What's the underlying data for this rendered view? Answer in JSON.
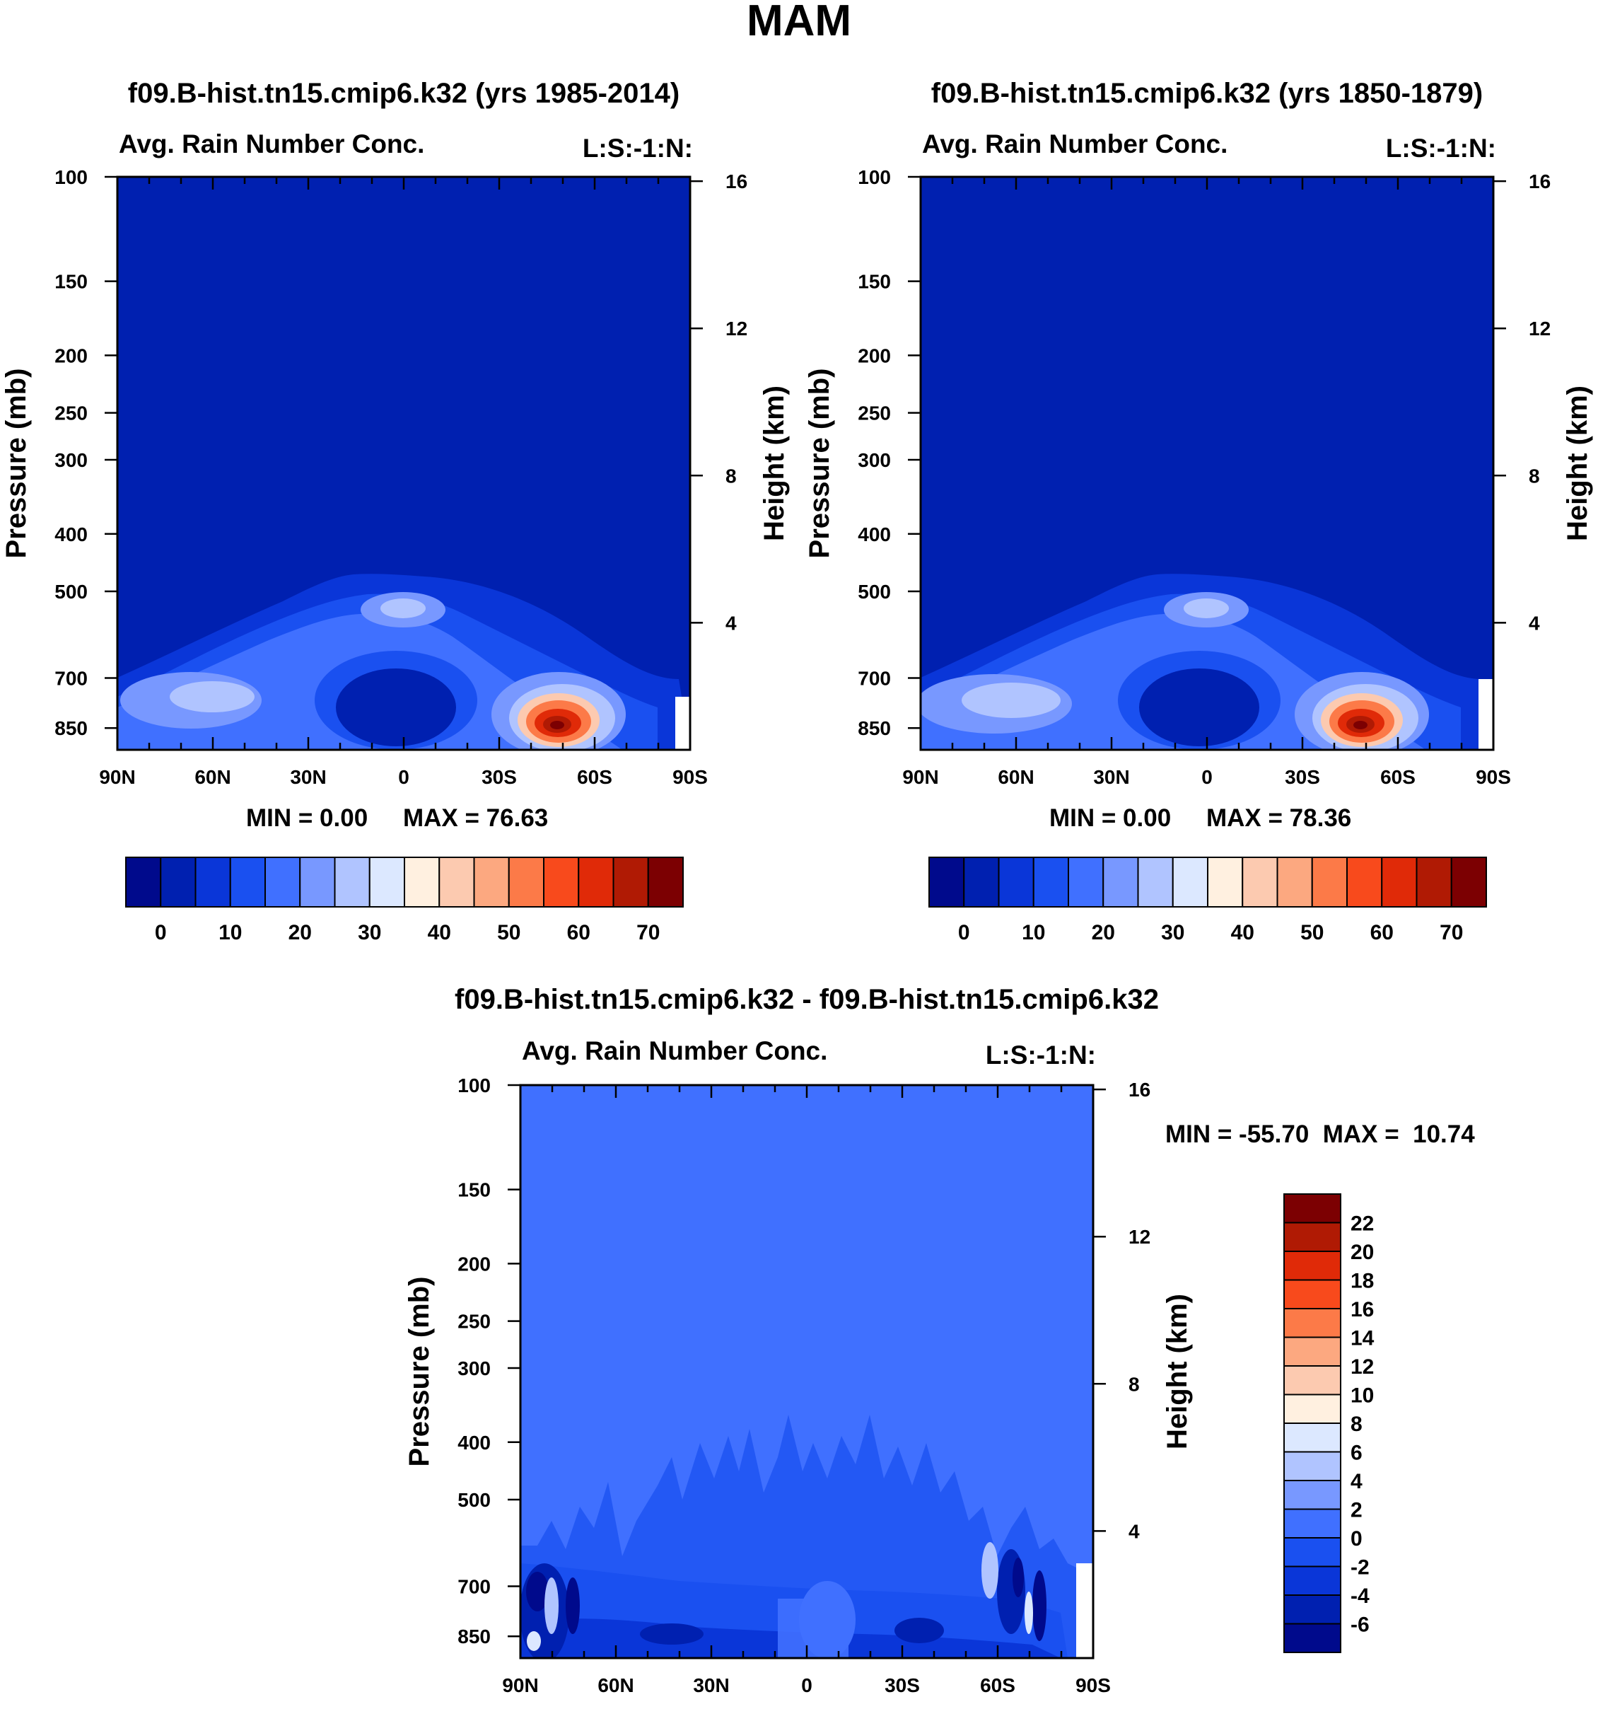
{
  "figure_title": "MAM",
  "chart_data": [
    {
      "type": "heatmap",
      "panel": "top-left",
      "title": "f09.B-hist.tn15.cmip6.k32 (yrs 1985-2014)",
      "left_label": "Avg. Rain Number Conc.",
      "right_label": "L:S:-1:N:",
      "ylabel": "Pressure (mb)",
      "ylabel_right": "Height (km)",
      "xlim": [
        90,
        -90
      ],
      "ylim_mb": [
        100,
        925
      ],
      "x_ticks": [
        90,
        60,
        30,
        0,
        -30,
        -60,
        -90
      ],
      "x_tick_labels": [
        "90N",
        "60N",
        "30N",
        "0",
        "30S",
        "60S",
        "90S"
      ],
      "y_ticks": [
        100,
        150,
        200,
        250,
        300,
        400,
        500,
        700,
        850
      ],
      "y_tick_labels": [
        "100",
        "150",
        "200",
        "250",
        "300",
        "400",
        "500",
        "700",
        "850"
      ],
      "height_ticks_km": [
        16,
        12,
        8,
        4
      ],
      "height_tick_labels": [
        "16",
        "12",
        "8",
        "4"
      ],
      "min_label": "MIN =   0.00",
      "max_label": "MAX =  76.63",
      "min": 0.0,
      "max": 76.63,
      "peak": {
        "lat": -48,
        "p": 850,
        "value": 76.63
      },
      "colorbar": {
        "orientation": "horizontal",
        "levels": [
          0,
          5,
          10,
          15,
          20,
          25,
          30,
          35,
          40,
          45,
          50,
          55,
          60,
          65,
          70
        ],
        "labels": [
          "0",
          "10",
          "20",
          "30",
          "40",
          "50",
          "60",
          "70"
        ],
        "colors": [
          "#000a8c",
          "#0020b0",
          "#0a36d8",
          "#1a50f0",
          "#4070ff",
          "#7898ff",
          "#b0c4ff",
          "#dce8ff",
          "#fff0e0",
          "#fccab0",
          "#fca880",
          "#fc7a48",
          "#f84a1c",
          "#e02a08",
          "#b01a04",
          "#7c0002"
        ]
      }
    },
    {
      "type": "heatmap",
      "panel": "top-right",
      "title": "f09.B-hist.tn15.cmip6.k32 (yrs 1850-1879)",
      "left_label": "Avg. Rain Number Conc.",
      "right_label": "L:S:-1:N:",
      "ylabel": "Pressure (mb)",
      "ylabel_right": "Height (km)",
      "xlim": [
        90,
        -90
      ],
      "ylim_mb": [
        100,
        925
      ],
      "x_ticks": [
        90,
        60,
        30,
        0,
        -30,
        -60,
        -90
      ],
      "x_tick_labels": [
        "90N",
        "60N",
        "30N",
        "0",
        "30S",
        "60S",
        "90S"
      ],
      "y_ticks": [
        100,
        150,
        200,
        250,
        300,
        400,
        500,
        700,
        850
      ],
      "y_tick_labels": [
        "100",
        "150",
        "200",
        "250",
        "300",
        "400",
        "500",
        "700",
        "850"
      ],
      "height_ticks_km": [
        16,
        12,
        8,
        4
      ],
      "height_tick_labels": [
        "16",
        "12",
        "8",
        "4"
      ],
      "min_label": "MIN =   0.00",
      "max_label": "MAX =  78.36",
      "min": 0.0,
      "max": 78.36,
      "peak": {
        "lat": -48,
        "p": 850,
        "value": 78.36
      },
      "colorbar": {
        "orientation": "horizontal",
        "levels": [
          0,
          5,
          10,
          15,
          20,
          25,
          30,
          35,
          40,
          45,
          50,
          55,
          60,
          65,
          70
        ],
        "labels": [
          "0",
          "10",
          "20",
          "30",
          "40",
          "50",
          "60",
          "70"
        ],
        "colors": [
          "#000a8c",
          "#0020b0",
          "#0a36d8",
          "#1a50f0",
          "#4070ff",
          "#7898ff",
          "#b0c4ff",
          "#dce8ff",
          "#fff0e0",
          "#fccab0",
          "#fca880",
          "#fc7a48",
          "#f84a1c",
          "#e02a08",
          "#b01a04",
          "#7c0002"
        ]
      }
    },
    {
      "type": "heatmap",
      "panel": "bottom",
      "title": "f09.B-hist.tn15.cmip6.k32 - f09.B-hist.tn15.cmip6.k32",
      "left_label": "Avg. Rain Number Conc.",
      "right_label": "L:S:-1:N:",
      "ylabel": "Pressure (mb)",
      "ylabel_right": "Height (km)",
      "xlim": [
        90,
        -90
      ],
      "ylim_mb": [
        100,
        925
      ],
      "x_ticks": [
        90,
        60,
        30,
        0,
        -30,
        -60,
        -90
      ],
      "x_tick_labels": [
        "90N",
        "60N",
        "30N",
        "0",
        "30S",
        "60S",
        "90S"
      ],
      "y_ticks": [
        100,
        150,
        200,
        250,
        300,
        400,
        500,
        700,
        850
      ],
      "y_tick_labels": [
        "100",
        "150",
        "200",
        "250",
        "300",
        "400",
        "500",
        "700",
        "850"
      ],
      "height_ticks_km": [
        16,
        12,
        8,
        4
      ],
      "height_tick_labels": [
        "16",
        "12",
        "8",
        "4"
      ],
      "minmax_label": "MIN = -55.70  MAX =  10.74",
      "min": -55.7,
      "max": 10.74,
      "colorbar": {
        "orientation": "vertical",
        "levels": [
          -6,
          -4,
          -2,
          0,
          2,
          4,
          6,
          8,
          10,
          12,
          14,
          16,
          18,
          20,
          22
        ],
        "labels": [
          "22",
          "20",
          "18",
          "16",
          "14",
          "12",
          "10",
          "8",
          "6",
          "4",
          "2",
          "0",
          "-2",
          "-4",
          "-6"
        ],
        "colors": [
          "#000a8c",
          "#0020b0",
          "#0a36d8",
          "#1a50f0",
          "#4070ff",
          "#7898ff",
          "#b0c4ff",
          "#dce8ff",
          "#fff0e0",
          "#fccab0",
          "#fca880",
          "#fc7a48",
          "#f84a1c",
          "#e02a08",
          "#b01a04",
          "#7c0002"
        ]
      }
    }
  ]
}
